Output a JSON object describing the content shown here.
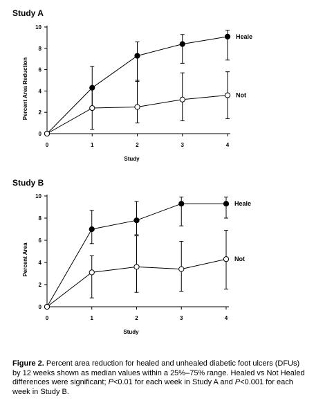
{
  "chart_data": [
    {
      "type": "line",
      "title": "Study A",
      "xlabel": "Study",
      "ylabel": "Percent Area Reduction",
      "x": [
        0,
        1,
        2,
        3,
        4
      ],
      "xlim": [
        0,
        4
      ],
      "ylim": [
        0,
        10
      ],
      "yticks": [
        0,
        2,
        4,
        6,
        8,
        10
      ],
      "grid": false,
      "series": [
        {
          "name": "Heale",
          "marker": "filled-circle",
          "values": [
            0,
            4.3,
            7.3,
            8.4,
            9.1
          ],
          "err_low": [
            0,
            2.3,
            4.9,
            6.6,
            6.9
          ],
          "err_high": [
            0,
            6.3,
            8.6,
            9.3,
            9.7
          ]
        },
        {
          "name": "Not",
          "marker": "open-circle",
          "values": [
            0,
            2.4,
            2.5,
            3.2,
            3.6
          ],
          "err_low": [
            0,
            0.4,
            1.0,
            1.2,
            1.4
          ],
          "err_high": [
            0,
            4.3,
            5.0,
            5.7,
            5.8
          ]
        }
      ]
    },
    {
      "type": "line",
      "title": "Study B",
      "xlabel": "Study",
      "ylabel": "Percent Area",
      "x": [
        0,
        1,
        2,
        3,
        4
      ],
      "xlim": [
        0,
        4
      ],
      "ylim": [
        0,
        10
      ],
      "yticks": [
        0,
        2,
        4,
        6,
        8,
        10
      ],
      "grid": false,
      "series": [
        {
          "name": "Heale",
          "marker": "filled-circle",
          "values": [
            0,
            7.0,
            7.8,
            9.3,
            9.3
          ],
          "err_low": [
            0,
            5.7,
            6.5,
            7.3,
            8.0
          ],
          "err_high": [
            0,
            8.7,
            9.5,
            9.9,
            9.9
          ]
        },
        {
          "name": "Not",
          "marker": "open-circle",
          "values": [
            0,
            3.1,
            3.6,
            3.4,
            4.3
          ],
          "err_low": [
            0,
            0.8,
            1.3,
            1.4,
            1.6
          ],
          "err_high": [
            0,
            4.6,
            6.4,
            5.9,
            6.9
          ]
        }
      ]
    }
  ],
  "caption": {
    "label": "Figure 2.",
    "text_1": " Percent area reduction for healed and unhealed diabetic foot ulcers (DFUs) by 12 weeks shown as median values within a 25%–75% range. Healed vs Not Healed differences were significant; ",
    "p1": "P",
    "text_2": "<0.01 for each week in Study A and ",
    "p2": "P",
    "text_3": "<0.001 for each week in Study B."
  }
}
